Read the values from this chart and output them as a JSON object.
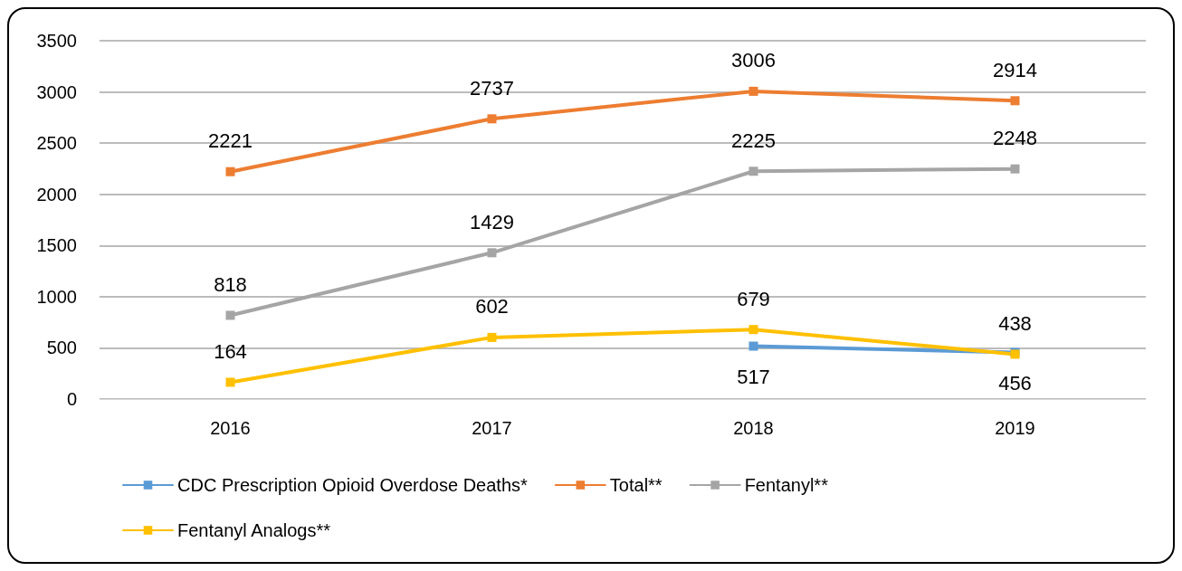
{
  "chart_data": {
    "type": "line",
    "categories": [
      "2016",
      "2017",
      "2018",
      "2019"
    ],
    "series": [
      {
        "name": "CDC Prescription Opioid Overdose Deaths*",
        "color": "#5b9bd5",
        "values": [
          null,
          null,
          517,
          456
        ]
      },
      {
        "name": "Total**",
        "color": "#ed7d31",
        "values": [
          2221,
          2737,
          3006,
          2914
        ]
      },
      {
        "name": "Fentanyl**",
        "color": "#a5a5a5",
        "values": [
          818,
          1429,
          2225,
          2248
        ]
      },
      {
        "name": "Fentanyl Analogs**",
        "color": "#ffc000",
        "values": [
          164,
          602,
          679,
          438
        ]
      }
    ],
    "ylim": [
      0,
      3500
    ],
    "yticks": [
      0,
      500,
      1000,
      1500,
      2000,
      2500,
      3000,
      3500
    ],
    "grid": "y",
    "legend": "bottom",
    "marker": "square",
    "line_style": "solid",
    "data_labels": true
  }
}
